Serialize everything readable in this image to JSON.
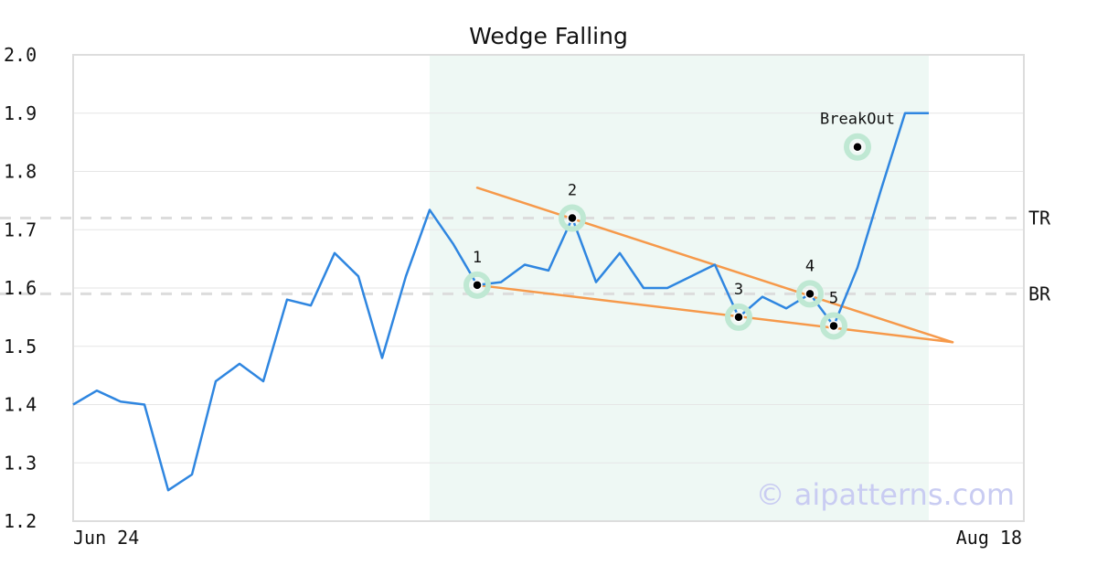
{
  "chart_data": {
    "type": "line",
    "title": "Wedge Falling",
    "xlabel": "",
    "ylabel": "",
    "x_tick_labels": [
      "Jun 24",
      "Aug 18"
    ],
    "y_ticks": [
      "1.2",
      "1.3",
      "1.4",
      "1.5",
      "1.6",
      "1.7",
      "1.8",
      "1.9",
      "2.0"
    ],
    "ylim": [
      1.2,
      2.0
    ],
    "grid": "horizontal",
    "x_count": 41,
    "series": [
      {
        "color": "#2f86e0",
        "values": [
          1.4,
          1.424,
          1.405,
          1.4,
          1.253,
          1.28,
          1.44,
          1.47,
          1.44,
          1.58,
          1.57,
          1.66,
          1.62,
          1.48,
          1.62,
          1.734,
          1.675,
          1.605,
          1.61,
          1.64,
          1.63,
          1.72,
          1.61,
          1.66,
          1.6,
          1.6,
          1.62,
          1.64,
          1.55,
          1.585,
          1.565,
          1.59,
          1.535,
          1.635,
          1.77,
          1.9,
          1.9
        ]
      }
    ],
    "shaded_region": {
      "from_index": 15,
      "to_index": 36,
      "color": "#eef8f4"
    },
    "reference_lines": [
      {
        "label": "TR",
        "value": 1.72
      },
      {
        "label": "BR",
        "value": 1.59
      }
    ],
    "trend_lines": [
      {
        "color": "#f6994a",
        "from": {
          "x": 17,
          "y": 1.772
        },
        "to": {
          "x": 37,
          "y": 1.507
        }
      },
      {
        "color": "#f6994a",
        "from": {
          "x": 17,
          "y": 1.605
        },
        "to": {
          "x": 37,
          "y": 1.507
        }
      }
    ],
    "annotations": [
      {
        "label": "1",
        "x": 17,
        "y": 1.605
      },
      {
        "label": "2",
        "x": 21,
        "y": 1.72
      },
      {
        "label": "3",
        "x": 28,
        "y": 1.55
      },
      {
        "label": "4",
        "x": 31,
        "y": 1.59
      },
      {
        "label": "5",
        "x": 32,
        "y": 1.535
      },
      {
        "label": "BreakOut",
        "x": 33,
        "y": 1.842
      }
    ],
    "watermark": "© aipatterns.com"
  }
}
